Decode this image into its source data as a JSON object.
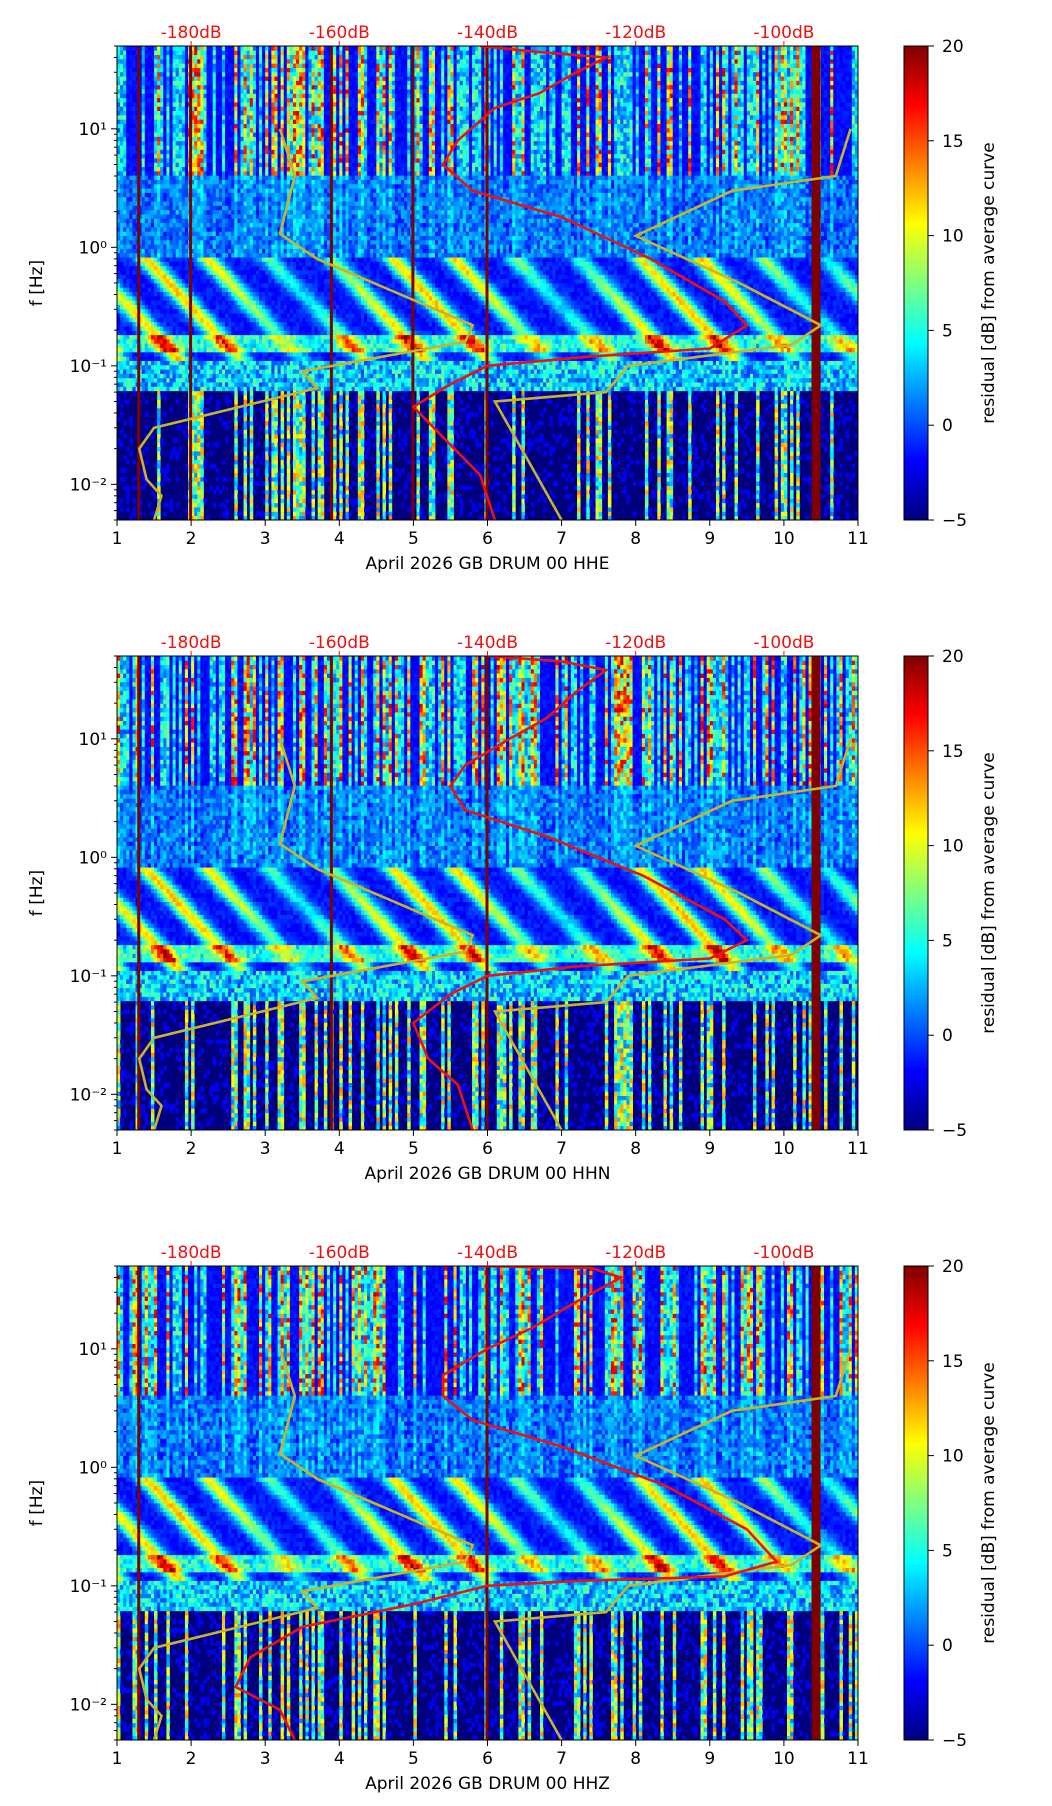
{
  "colors": {
    "nlnm_nhnm": "#c8b42a",
    "average": "#ee1111",
    "top_labels": "#ee1111",
    "colormap": [
      "#00007f",
      "#0000ff",
      "#007fff",
      "#00ffff",
      "#7fff7f",
      "#ffff00",
      "#ff7f00",
      "#ff0000",
      "#7f0000"
    ]
  },
  "chart_data": [
    {
      "type": "heatmap",
      "xlabel": "April 2026 GB DRUM 00 HHE",
      "ylabel": "f [Hz]",
      "xlim": [
        1,
        11
      ],
      "x_ticks": [
        "1",
        "2",
        "3",
        "4",
        "5",
        "6",
        "7",
        "8",
        "9",
        "10",
        "11"
      ],
      "ylim_hz": [
        0.005,
        50
      ],
      "y_scale": "log",
      "y_ticks": [
        {
          "value": 0.01,
          "label": "10⁻²"
        },
        {
          "value": 0.1,
          "label": "10⁻¹"
        },
        {
          "value": 1,
          "label": "10⁰"
        },
        {
          "value": 10,
          "label": "10¹"
        }
      ],
      "db_axis": {
        "ticks": [
          "-180dB",
          "-160dB",
          "-140dB",
          "-120dB",
          "-100dB"
        ]
      },
      "colorbar": {
        "label": "residual [dB] from average curve",
        "range": [
          -5,
          20
        ],
        "ticks": [
          "−5",
          "0",
          "5",
          "10",
          "15",
          "20"
        ]
      },
      "gap_days": [
        1.3,
        2.0,
        3.9,
        5.0,
        6.0,
        10.4
      ],
      "curves": {
        "average": [
          [
            -141,
            50
          ],
          [
            -134,
            45
          ],
          [
            -124,
            40
          ],
          [
            -128,
            30
          ],
          [
            -133,
            20
          ],
          [
            -139,
            15
          ],
          [
            -144,
            8
          ],
          [
            -146,
            5
          ],
          [
            -142,
            3
          ],
          [
            -130,
            1.8
          ],
          [
            -118,
            0.8
          ],
          [
            -108,
            0.35
          ],
          [
            -105,
            0.22
          ],
          [
            -110,
            0.14
          ],
          [
            -126,
            0.12
          ],
          [
            -140,
            0.1
          ],
          [
            -145,
            0.07
          ],
          [
            -150,
            0.045
          ],
          [
            -146,
            0.025
          ],
          [
            -141,
            0.012
          ],
          [
            -139,
            0.005
          ]
        ],
        "nlnm": [
          [
            -168,
            10
          ],
          [
            -166,
            4
          ],
          [
            -168,
            1.3
          ],
          [
            -163,
            0.8
          ],
          [
            -142,
            0.22
          ],
          [
            -143,
            0.16
          ],
          [
            -165,
            0.09
          ],
          [
            -163,
            0.065
          ],
          [
            -185,
            0.03
          ],
          [
            -187,
            0.02
          ],
          [
            -186,
            0.011
          ],
          [
            -184,
            0.008
          ],
          [
            -185,
            0.005
          ]
        ],
        "nhnm": [
          [
            -91,
            10
          ],
          [
            -93,
            4
          ],
          [
            -107,
            3
          ],
          [
            -120,
            1.25
          ],
          [
            -106,
            0.5
          ],
          [
            -95,
            0.22
          ],
          [
            -99,
            0.15
          ],
          [
            -121,
            0.1
          ],
          [
            -124,
            0.06
          ],
          [
            -139,
            0.05
          ],
          [
            -130,
            0.005
          ]
        ]
      }
    },
    {
      "type": "heatmap",
      "xlabel": "April 2026 GB DRUM 00 HHN",
      "ylabel": "f [Hz]",
      "xlim": [
        1,
        11
      ],
      "x_ticks": [
        "1",
        "2",
        "3",
        "4",
        "5",
        "6",
        "7",
        "8",
        "9",
        "10",
        "11"
      ],
      "ylim_hz": [
        0.005,
        50
      ],
      "y_scale": "log",
      "y_ticks": [
        {
          "value": 0.01,
          "label": "10⁻²"
        },
        {
          "value": 0.1,
          "label": "10⁻¹"
        },
        {
          "value": 1,
          "label": "10⁰"
        },
        {
          "value": 10,
          "label": "10¹"
        }
      ],
      "db_axis": {
        "ticks": [
          "-180dB",
          "-160dB",
          "-140dB",
          "-120dB",
          "-100dB"
        ]
      },
      "colorbar": {
        "label": "residual [dB] from average curve",
        "range": [
          -5,
          20
        ],
        "ticks": [
          "−5",
          "0",
          "5",
          "10",
          "15",
          "20"
        ]
      },
      "gap_days": [
        1.3,
        3.9,
        6.0,
        10.4
      ],
      "curves": {
        "average": [
          [
            -140,
            50
          ],
          [
            -130,
            45
          ],
          [
            -124,
            38
          ],
          [
            -128,
            25
          ],
          [
            -132,
            15
          ],
          [
            -137,
            10
          ],
          [
            -143,
            6
          ],
          [
            -145,
            4
          ],
          [
            -143,
            2.5
          ],
          [
            -132,
            1.5
          ],
          [
            -119,
            0.7
          ],
          [
            -108,
            0.3
          ],
          [
            -105,
            0.2
          ],
          [
            -110,
            0.14
          ],
          [
            -128,
            0.12
          ],
          [
            -140,
            0.1
          ],
          [
            -145,
            0.07
          ],
          [
            -150,
            0.04
          ],
          [
            -148,
            0.02
          ],
          [
            -144,
            0.012
          ],
          [
            -142,
            0.005
          ]
        ],
        "nlnm": [
          [
            -168,
            10
          ],
          [
            -166,
            4
          ],
          [
            -168,
            1.3
          ],
          [
            -163,
            0.8
          ],
          [
            -142,
            0.22
          ],
          [
            -143,
            0.16
          ],
          [
            -165,
            0.09
          ],
          [
            -163,
            0.065
          ],
          [
            -185,
            0.03
          ],
          [
            -187,
            0.02
          ],
          [
            -186,
            0.011
          ],
          [
            -184,
            0.008
          ],
          [
            -185,
            0.005
          ]
        ],
        "nhnm": [
          [
            -91,
            10
          ],
          [
            -93,
            4
          ],
          [
            -107,
            3
          ],
          [
            -120,
            1.25
          ],
          [
            -106,
            0.5
          ],
          [
            -95,
            0.22
          ],
          [
            -99,
            0.15
          ],
          [
            -121,
            0.1
          ],
          [
            -124,
            0.06
          ],
          [
            -139,
            0.05
          ],
          [
            -130,
            0.005
          ]
        ]
      }
    },
    {
      "type": "heatmap",
      "xlabel": "April 2026 GB DRUM 00 HHZ",
      "ylabel": "f [Hz]",
      "xlim": [
        1,
        11
      ],
      "x_ticks": [
        "1",
        "2",
        "3",
        "4",
        "5",
        "6",
        "7",
        "8",
        "9",
        "10",
        "11"
      ],
      "ylim_hz": [
        0.005,
        50
      ],
      "y_scale": "log",
      "y_ticks": [
        {
          "value": 0.01,
          "label": "10⁻²"
        },
        {
          "value": 0.1,
          "label": "10⁻¹"
        },
        {
          "value": 1,
          "label": "10⁰"
        },
        {
          "value": 10,
          "label": "10¹"
        }
      ],
      "db_axis": {
        "ticks": [
          "-180dB",
          "-160dB",
          "-140dB",
          "-120dB",
          "-100dB"
        ]
      },
      "colorbar": {
        "label": "residual [dB] from average curve",
        "range": [
          -5,
          20
        ],
        "ticks": [
          "−5",
          "0",
          "5",
          "10",
          "15",
          "20"
        ]
      },
      "gap_days": [
        1.3,
        6.0,
        10.4
      ],
      "curves": {
        "average": [
          [
            -141,
            50
          ],
          [
            -126,
            48
          ],
          [
            -122,
            40
          ],
          [
            -128,
            25
          ],
          [
            -134,
            15
          ],
          [
            -140,
            10
          ],
          [
            -146,
            6
          ],
          [
            -146,
            4
          ],
          [
            -142,
            2.5
          ],
          [
            -130,
            1.5
          ],
          [
            -116,
            0.7
          ],
          [
            -105,
            0.3
          ],
          [
            -101,
            0.16
          ],
          [
            -108,
            0.12
          ],
          [
            -128,
            0.11
          ],
          [
            -140,
            0.1
          ],
          [
            -150,
            0.07
          ],
          [
            -165,
            0.045
          ],
          [
            -172,
            0.025
          ],
          [
            -174,
            0.014
          ],
          [
            -168,
            0.009
          ],
          [
            -166,
            0.005
          ]
        ],
        "nlnm": [
          [
            -168,
            10
          ],
          [
            -166,
            4
          ],
          [
            -168,
            1.3
          ],
          [
            -163,
            0.8
          ],
          [
            -142,
            0.22
          ],
          [
            -143,
            0.16
          ],
          [
            -165,
            0.09
          ],
          [
            -163,
            0.065
          ],
          [
            -185,
            0.03
          ],
          [
            -187,
            0.02
          ],
          [
            -186,
            0.011
          ],
          [
            -184,
            0.008
          ],
          [
            -185,
            0.005
          ]
        ],
        "nhnm": [
          [
            -91,
            10
          ],
          [
            -93,
            4
          ],
          [
            -107,
            3
          ],
          [
            -120,
            1.25
          ],
          [
            -106,
            0.5
          ],
          [
            -95,
            0.22
          ],
          [
            -99,
            0.15
          ],
          [
            -121,
            0.1
          ],
          [
            -124,
            0.06
          ],
          [
            -139,
            0.05
          ],
          [
            -130,
            0.005
          ]
        ]
      }
    }
  ]
}
